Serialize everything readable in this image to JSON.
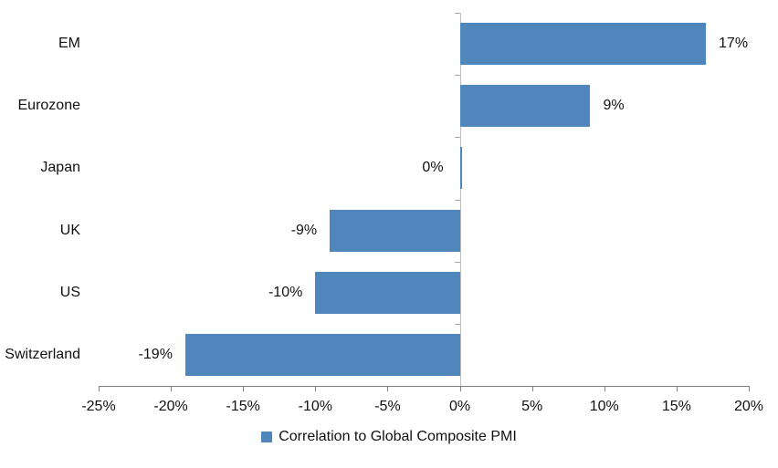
{
  "chart_data": {
    "type": "bar",
    "orientation": "horizontal",
    "title": "",
    "categories": [
      "EM",
      "Eurozone",
      "Japan",
      "UK",
      "US",
      "Switzerland"
    ],
    "values": [
      17,
      9,
      0,
      -9,
      -10,
      -19
    ],
    "value_labels": [
      "17%",
      "9%",
      "0%",
      "-9%",
      "-10%",
      "-19%"
    ],
    "series_name": "Correlation to Global Composite PMI",
    "xlim": [
      -25,
      20
    ],
    "x_ticks": [
      -25,
      -20,
      -15,
      -10,
      -5,
      0,
      5,
      10,
      15,
      20
    ],
    "x_tick_labels": [
      "-25%",
      "-20%",
      "-15%",
      "-10%",
      "-5%",
      "0%",
      "5%",
      "10%",
      "15%",
      "20%"
    ],
    "grid": false,
    "legend_position": "bottom",
    "bar_color": "#4F86BC",
    "axis_color": "#7F7F7F",
    "zero_line_color": "#BFBFBF"
  }
}
